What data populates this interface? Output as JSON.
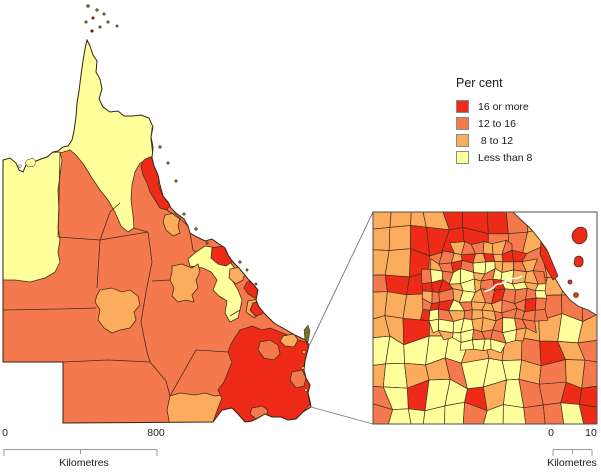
{
  "legend": {
    "title": "Per cent",
    "items": [
      {
        "label": "16 or more",
        "color_key": "red"
      },
      {
        "label": "12 to 16",
        "color_key": "orange"
      },
      {
        "label": " 8 to 12",
        "color_key": "light_orange"
      },
      {
        "label": "Less than 8",
        "color_key": "yellow"
      }
    ]
  },
  "scalebars": {
    "main": {
      "start_label": "0",
      "end_label": "800",
      "unit_label": "Kilometres"
    },
    "inset": {
      "start_label": "0",
      "end_label": "10",
      "unit_label": "Kilometres"
    }
  },
  "colors": {
    "red": "#ED2B18",
    "orange": "#F5794E",
    "light_orange": "#FBAD5D",
    "yellow": "#FFFF9C",
    "boundary": "#4A2E15",
    "outline": "#33220F",
    "water": "#FFFFFF",
    "island_olive": "#72722D",
    "callout": "#777777",
    "scalebar_line": "#999999",
    "text": "#1A1A1A"
  }
}
